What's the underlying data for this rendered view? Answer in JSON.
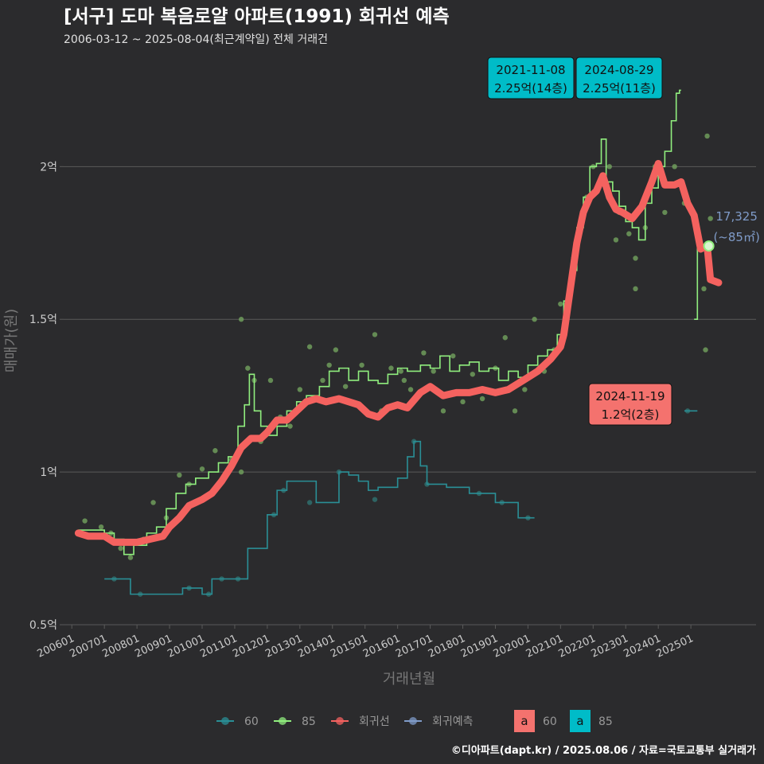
{
  "chart_data": {
    "type": "line",
    "title": "[서구] 도마 복음로얄 아파트(1991) 회귀선 예측",
    "subtitle": "2006-03-12 ~ 2025-08-04(최근계약일) 전체 거래건",
    "xlabel": "거래년월",
    "ylabel": "매매가(원)",
    "x_ticks": [
      "200601",
      "200701",
      "200801",
      "200901",
      "201001",
      "201101",
      "201201",
      "201301",
      "201401",
      "201501",
      "201601",
      "201701",
      "201801",
      "201901",
      "202001",
      "202101",
      "202201",
      "202301",
      "202401",
      "202501"
    ],
    "y_ticks": [
      {
        "value": 0.5,
        "label": "0.5억"
      },
      {
        "value": 1.0,
        "label": "1억"
      },
      {
        "value": 1.5,
        "label": "1.5억"
      },
      {
        "value": 2.0,
        "label": "2억"
      }
    ],
    "x_range": [
      2005.75,
      2027.0
    ],
    "y_range": [
      0.5,
      2.35
    ],
    "unit": "억원",
    "colors": {
      "background": "#2b2b2d",
      "grid": "#5a5a5a",
      "series_60": "#2a8f96",
      "series_85": "#90ee7e",
      "regression": "#f4625f",
      "prediction": "#7f9bc8",
      "points_85": "#6e9c5c",
      "points_60": "#2f6f6d",
      "label_60_bg": "#f4726e",
      "label_85_bg": "#00bcc8",
      "text_light": "#cccccc",
      "text_white": "#ffffff"
    },
    "series": [
      {
        "name": "85",
        "role": "moving-average",
        "points": [
          [
            2006.2,
            0.81
          ],
          [
            2006.6,
            0.81
          ],
          [
            2007.0,
            0.8
          ],
          [
            2007.3,
            0.78
          ],
          [
            2007.6,
            0.73
          ],
          [
            2007.9,
            0.76
          ],
          [
            2008.3,
            0.8
          ],
          [
            2008.6,
            0.82
          ],
          [
            2008.9,
            0.88
          ],
          [
            2009.2,
            0.93
          ],
          [
            2009.5,
            0.96
          ],
          [
            2009.8,
            0.98
          ],
          [
            2010.2,
            1.0
          ],
          [
            2010.5,
            1.03
          ],
          [
            2010.8,
            1.05
          ],
          [
            2011.1,
            1.15
          ],
          [
            2011.3,
            1.22
          ],
          [
            2011.45,
            1.32
          ],
          [
            2011.6,
            1.2
          ],
          [
            2011.8,
            1.15
          ],
          [
            2012.0,
            1.12
          ],
          [
            2012.3,
            1.15
          ],
          [
            2012.6,
            1.2
          ],
          [
            2012.9,
            1.23
          ],
          [
            2013.2,
            1.25
          ],
          [
            2013.6,
            1.28
          ],
          [
            2013.9,
            1.33
          ],
          [
            2014.2,
            1.34
          ],
          [
            2014.5,
            1.3
          ],
          [
            2014.8,
            1.33
          ],
          [
            2015.1,
            1.3
          ],
          [
            2015.4,
            1.29
          ],
          [
            2015.7,
            1.32
          ],
          [
            2016.0,
            1.34
          ],
          [
            2016.3,
            1.33
          ],
          [
            2016.7,
            1.35
          ],
          [
            2017.0,
            1.34
          ],
          [
            2017.3,
            1.38
          ],
          [
            2017.6,
            1.33
          ],
          [
            2017.9,
            1.35
          ],
          [
            2018.2,
            1.36
          ],
          [
            2018.5,
            1.33
          ],
          [
            2018.8,
            1.34
          ],
          [
            2019.1,
            1.3
          ],
          [
            2019.4,
            1.33
          ],
          [
            2019.7,
            1.31
          ],
          [
            2020.0,
            1.35
          ],
          [
            2020.3,
            1.38
          ],
          [
            2020.6,
            1.4
          ],
          [
            2020.9,
            1.45
          ],
          [
            2021.1,
            1.56
          ],
          [
            2021.3,
            1.66
          ],
          [
            2021.5,
            1.8
          ],
          [
            2021.7,
            1.9
          ],
          [
            2021.9,
            2.0
          ],
          [
            2022.1,
            2.01
          ],
          [
            2022.25,
            2.09
          ],
          [
            2022.4,
            1.95
          ],
          [
            2022.6,
            1.92
          ],
          [
            2022.8,
            1.87
          ],
          [
            2023.0,
            1.82
          ],
          [
            2023.2,
            1.8
          ],
          [
            2023.4,
            1.76
          ],
          [
            2023.6,
            1.88
          ],
          [
            2023.8,
            1.93
          ],
          [
            2024.0,
            2.0
          ],
          [
            2024.2,
            2.05
          ],
          [
            2024.4,
            2.15
          ],
          [
            2024.55,
            2.24
          ],
          [
            2024.65,
            2.25
          ],
          [
            2024.7,
            2.25
          ]
        ]
      },
      {
        "name": "85",
        "role": "moving-average-recent",
        "points": [
          [
            2025.1,
            1.5
          ],
          [
            2025.2,
            1.74
          ],
          [
            2025.5,
            1.74
          ]
        ]
      },
      {
        "name": "60",
        "role": "moving-average",
        "points": [
          [
            2007.0,
            0.65
          ],
          [
            2007.5,
            0.65
          ],
          [
            2007.8,
            0.6
          ],
          [
            2008.5,
            0.6
          ],
          [
            2009.4,
            0.62
          ],
          [
            2009.8,
            0.62
          ],
          [
            2010.0,
            0.6
          ],
          [
            2010.3,
            0.65
          ],
          [
            2010.8,
            0.65
          ],
          [
            2011.1,
            0.65
          ],
          [
            2011.4,
            0.75
          ],
          [
            2011.8,
            0.75
          ],
          [
            2012.0,
            0.86
          ],
          [
            2012.3,
            0.94
          ],
          [
            2012.6,
            0.97
          ],
          [
            2013.0,
            0.97
          ],
          [
            2013.5,
            0.9
          ],
          [
            2013.9,
            0.9
          ],
          [
            2014.2,
            1.0
          ],
          [
            2014.5,
            0.99
          ],
          [
            2014.8,
            0.97
          ],
          [
            2015.1,
            0.94
          ],
          [
            2015.4,
            0.95
          ],
          [
            2015.7,
            0.95
          ],
          [
            2016.0,
            0.98
          ],
          [
            2016.3,
            1.05
          ],
          [
            2016.5,
            1.1
          ],
          [
            2016.7,
            1.02
          ],
          [
            2016.9,
            0.96
          ],
          [
            2017.2,
            0.96
          ],
          [
            2017.5,
            0.95
          ],
          [
            2017.8,
            0.95
          ],
          [
            2018.2,
            0.93
          ],
          [
            2018.6,
            0.93
          ],
          [
            2019.0,
            0.9
          ],
          [
            2019.4,
            0.9
          ],
          [
            2019.7,
            0.85
          ],
          [
            2020.2,
            0.85
          ]
        ]
      },
      {
        "name": "60",
        "role": "moving-average-recent",
        "points": [
          [
            2024.8,
            1.2
          ],
          [
            2025.2,
            1.2
          ]
        ]
      },
      {
        "name": "회귀선",
        "role": "regression",
        "points": [
          [
            2006.2,
            0.8
          ],
          [
            2006.5,
            0.79
          ],
          [
            2007.0,
            0.79
          ],
          [
            2007.3,
            0.77
          ],
          [
            2007.7,
            0.77
          ],
          [
            2008.0,
            0.77
          ],
          [
            2008.4,
            0.78
          ],
          [
            2008.8,
            0.79
          ],
          [
            2009.0,
            0.82
          ],
          [
            2009.3,
            0.85
          ],
          [
            2009.6,
            0.89
          ],
          [
            2010.0,
            0.91
          ],
          [
            2010.3,
            0.93
          ],
          [
            2010.6,
            0.97
          ],
          [
            2010.9,
            1.02
          ],
          [
            2011.2,
            1.08
          ],
          [
            2011.5,
            1.11
          ],
          [
            2011.8,
            1.11
          ],
          [
            2012.0,
            1.13
          ],
          [
            2012.3,
            1.17
          ],
          [
            2012.6,
            1.17
          ],
          [
            2012.9,
            1.2
          ],
          [
            2013.2,
            1.23
          ],
          [
            2013.5,
            1.24
          ],
          [
            2013.8,
            1.23
          ],
          [
            2014.2,
            1.24
          ],
          [
            2014.5,
            1.23
          ],
          [
            2014.8,
            1.22
          ],
          [
            2015.1,
            1.19
          ],
          [
            2015.4,
            1.18
          ],
          [
            2015.7,
            1.21
          ],
          [
            2016.0,
            1.22
          ],
          [
            2016.3,
            1.21
          ],
          [
            2016.7,
            1.26
          ],
          [
            2017.0,
            1.28
          ],
          [
            2017.4,
            1.25
          ],
          [
            2017.8,
            1.26
          ],
          [
            2018.2,
            1.26
          ],
          [
            2018.6,
            1.27
          ],
          [
            2019.0,
            1.26
          ],
          [
            2019.4,
            1.27
          ],
          [
            2019.7,
            1.29
          ],
          [
            2020.0,
            1.31
          ],
          [
            2020.3,
            1.33
          ],
          [
            2020.7,
            1.37
          ],
          [
            2021.0,
            1.41
          ],
          [
            2021.1,
            1.45
          ],
          [
            2021.3,
            1.6
          ],
          [
            2021.5,
            1.75
          ],
          [
            2021.7,
            1.85
          ],
          [
            2021.9,
            1.9
          ],
          [
            2022.1,
            1.92
          ],
          [
            2022.3,
            1.97
          ],
          [
            2022.5,
            1.9
          ],
          [
            2022.7,
            1.86
          ],
          [
            2022.9,
            1.85
          ],
          [
            2023.2,
            1.83
          ],
          [
            2023.5,
            1.87
          ],
          [
            2023.8,
            1.95
          ],
          [
            2024.0,
            2.01
          ],
          [
            2024.2,
            1.94
          ],
          [
            2024.5,
            1.94
          ],
          [
            2024.7,
            1.95
          ],
          [
            2024.9,
            1.88
          ],
          [
            2025.1,
            1.84
          ],
          [
            2025.3,
            1.73
          ],
          [
            2025.5,
            1.74
          ],
          [
            2025.6,
            1.63
          ],
          [
            2025.85,
            1.62
          ]
        ]
      }
    ],
    "scatter": [
      {
        "name": "85",
        "points": [
          [
            2006.4,
            0.84
          ],
          [
            2006.9,
            0.82
          ],
          [
            2007.2,
            0.8
          ],
          [
            2007.5,
            0.75
          ],
          [
            2007.8,
            0.72
          ],
          [
            2008.2,
            0.78
          ],
          [
            2008.5,
            0.9
          ],
          [
            2008.9,
            0.85
          ],
          [
            2009.3,
            0.99
          ],
          [
            2009.6,
            0.96
          ],
          [
            2010.0,
            1.01
          ],
          [
            2010.4,
            1.07
          ],
          [
            2010.9,
            1.04
          ],
          [
            2011.2,
            1.0
          ],
          [
            2011.4,
            1.34
          ],
          [
            2011.6,
            1.3
          ],
          [
            2011.8,
            1.1
          ],
          [
            2012.1,
            1.3
          ],
          [
            2012.4,
            1.18
          ],
          [
            2012.7,
            1.15
          ],
          [
            2013.0,
            1.27
          ],
          [
            2013.3,
            1.41
          ],
          [
            2013.7,
            1.3
          ],
          [
            2013.9,
            1.35
          ],
          [
            2014.1,
            1.4
          ],
          [
            2014.4,
            1.28
          ],
          [
            2014.9,
            1.35
          ],
          [
            2015.3,
            1.45
          ],
          [
            2015.8,
            1.34
          ],
          [
            2016.1,
            1.33
          ],
          [
            2016.4,
            1.27
          ],
          [
            2016.8,
            1.39
          ],
          [
            2017.1,
            1.33
          ],
          [
            2017.4,
            1.2
          ],
          [
            2017.7,
            1.38
          ],
          [
            2018.0,
            1.23
          ],
          [
            2018.3,
            1.32
          ],
          [
            2018.6,
            1.24
          ],
          [
            2019.0,
            1.34
          ],
          [
            2019.3,
            1.44
          ],
          [
            2019.6,
            1.2
          ],
          [
            2019.9,
            1.27
          ],
          [
            2020.2,
            1.5
          ],
          [
            2020.5,
            1.33
          ],
          [
            2020.8,
            1.4
          ],
          [
            2021.0,
            1.55
          ],
          [
            2021.4,
            1.7
          ],
          [
            2021.8,
            1.9
          ],
          [
            2022.0,
            2.0
          ],
          [
            2022.2,
            2.25
          ],
          [
            2022.5,
            2.0
          ],
          [
            2022.8,
            1.85
          ],
          [
            2023.1,
            1.78
          ],
          [
            2023.3,
            1.7
          ],
          [
            2023.6,
            1.8
          ],
          [
            2023.9,
            2.0
          ],
          [
            2024.2,
            1.85
          ],
          [
            2024.5,
            2.0
          ],
          [
            2024.8,
            1.88
          ],
          [
            2025.3,
            1.74
          ],
          [
            2025.5,
            2.1
          ],
          [
            2025.6,
            1.83
          ],
          [
            2025.4,
            1.6
          ],
          [
            2025.45,
            1.4
          ],
          [
            2011.2,
            1.5
          ],
          [
            2012.9,
            1.2
          ],
          [
            2015.5,
            1.2
          ],
          [
            2016.2,
            1.3
          ],
          [
            2018.9,
            1.26
          ],
          [
            2022.7,
            1.76
          ],
          [
            2023.3,
            1.6
          ]
        ]
      },
      {
        "name": "60",
        "points": [
          [
            2007.3,
            0.65
          ],
          [
            2008.1,
            0.6
          ],
          [
            2009.6,
            0.62
          ],
          [
            2010.2,
            0.6
          ],
          [
            2010.6,
            0.65
          ],
          [
            2011.1,
            0.65
          ],
          [
            2012.2,
            0.86
          ],
          [
            2012.5,
            0.94
          ],
          [
            2013.3,
            0.9
          ],
          [
            2014.2,
            1.0
          ],
          [
            2015.3,
            0.91
          ],
          [
            2016.5,
            1.1
          ],
          [
            2016.9,
            0.96
          ],
          [
            2018.5,
            0.93
          ],
          [
            2019.2,
            0.9
          ],
          [
            2020.0,
            0.85
          ],
          [
            2024.9,
            1.2
          ]
        ]
      }
    ],
    "current_point": {
      "x": 2025.55,
      "y": 1.74
    },
    "annotations": [
      {
        "series": "85",
        "date": "2021-11-08",
        "text": "2.25억(14층)"
      },
      {
        "series": "85",
        "date": "2024-08-29",
        "text": "2.25억(11층)"
      },
      {
        "series": "60",
        "date": "2024-11-19",
        "text": "1.2억(2층)"
      }
    ],
    "side_label": {
      "line1": "17,325",
      "line2": "(~85㎡)"
    },
    "legend": {
      "placement": "bottom",
      "lines": [
        "60",
        "85",
        "회귀선",
        "회귀예측"
      ],
      "boxes": [
        {
          "glyph": "a",
          "label": "60"
        },
        {
          "glyph": "a",
          "label": "85"
        }
      ]
    },
    "footer": "©디아파트(dapt.kr) / 2025.08.06 / 자료=국토교통부 실거래가"
  }
}
